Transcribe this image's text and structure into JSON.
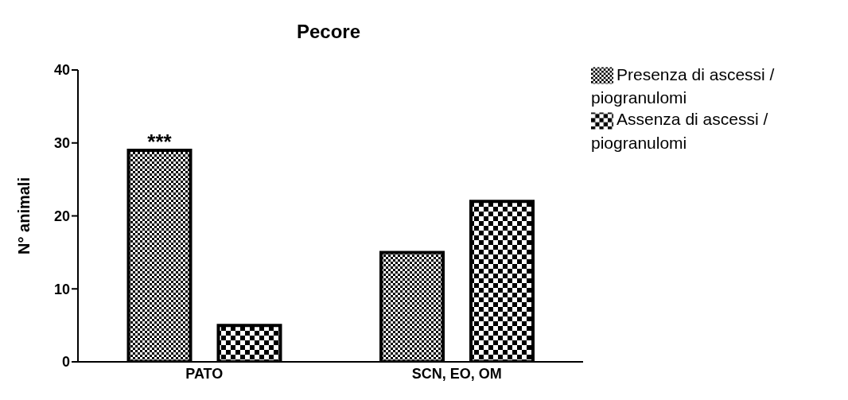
{
  "chart_data": {
    "type": "bar",
    "title": "Pecore",
    "ylabel": "N° animali",
    "categories": [
      "PATO",
      "SCN, EO, OM"
    ],
    "series": [
      {
        "name": "Presenza di ascessi / piogranulomi",
        "color": "#000000",
        "values": [
          29,
          15
        ]
      },
      {
        "name": "Assenza di ascessi / piogranulomi",
        "color": "#000000",
        "values": [
          5,
          22
        ]
      }
    ],
    "ylim": [
      0,
      40
    ],
    "yticks": [
      0,
      10,
      20,
      30,
      40
    ],
    "grid": false,
    "legend": "right",
    "annotations": [
      "***"
    ]
  }
}
